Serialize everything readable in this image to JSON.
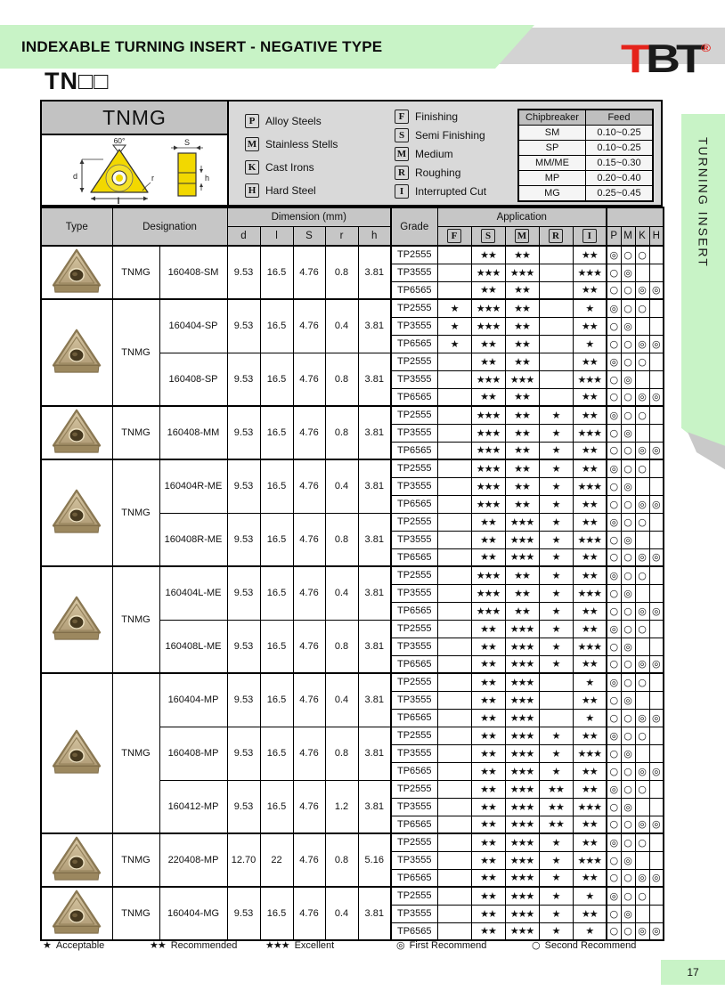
{
  "page": {
    "banner_title": "INDEXABLE TURNING INSERT - NEGATIVE TYPE",
    "logo": {
      "t1": "T",
      "b": "B",
      "t2": "T",
      "registered": "®"
    },
    "model_code": "TN□□",
    "side_tab": "TURNING INSERT",
    "page_number": "17"
  },
  "product": {
    "name": "TNMG",
    "diagram_labels": {
      "angle": "60°",
      "d": "d",
      "l": "l",
      "s": "S",
      "r": "r",
      "h": "h"
    }
  },
  "material_legend": [
    {
      "code": "P",
      "label": "Alloy Steels"
    },
    {
      "code": "M",
      "label": "Stainless Stells"
    },
    {
      "code": "K",
      "label": "Cast Irons"
    },
    {
      "code": "H",
      "label": "Hard Steel"
    }
  ],
  "application_legend": [
    {
      "code": "F",
      "label": "Finishing"
    },
    {
      "code": "S",
      "label": "Semi Finishing"
    },
    {
      "code": "M",
      "label": "Medium"
    },
    {
      "code": "R",
      "label": "Roughing"
    },
    {
      "code": "I",
      "label": "Interrupted Cut"
    }
  ],
  "chipbreaker_table": {
    "headers": [
      "Chipbreaker",
      "Feed"
    ],
    "rows": [
      [
        "SM",
        "0.10~0.25"
      ],
      [
        "SP",
        "0.10~0.25"
      ],
      [
        "MM/ME",
        "0.15~0.30"
      ],
      [
        "MP",
        "0.20~0.40"
      ],
      [
        "MG",
        "0.25~0.45"
      ]
    ]
  },
  "table": {
    "headers": {
      "type": "Type",
      "designation": "Designation",
      "dimension": "Dimension (mm)",
      "dim_cols": [
        "d",
        "l",
        "S",
        "r",
        "h"
      ],
      "grade": "Grade",
      "application": "Application",
      "app_cols": [
        "F",
        "S",
        "M",
        "R",
        "I"
      ],
      "material_cols": [
        "P",
        "M",
        "K",
        "H"
      ]
    },
    "groups": [
      {
        "type_label": "TNMG",
        "items": [
          {
            "designation": "160408-SM",
            "d": "9.53",
            "l": "16.5",
            "s": "4.76",
            "r": "0.8",
            "h": "3.81",
            "grades": [
              {
                "grade": "TP2555",
                "apps": [
                  "",
                  "★★",
                  "★★",
                  "",
                  "★★"
                ],
                "mats": [
                  "◎",
                  "○",
                  "○",
                  ""
                ]
              },
              {
                "grade": "TP3555",
                "apps": [
                  "",
                  "★★★",
                  "★★★",
                  "",
                  "★★★"
                ],
                "mats": [
                  "○",
                  "◎",
                  "",
                  ""
                ]
              },
              {
                "grade": "TP6565",
                "apps": [
                  "",
                  "★★",
                  "★★",
                  "",
                  "★★"
                ],
                "mats": [
                  "○",
                  "○",
                  "◎",
                  "◎"
                ]
              }
            ]
          }
        ]
      },
      {
        "type_label": "TNMG",
        "items": [
          {
            "designation": "160404-SP",
            "d": "9.53",
            "l": "16.5",
            "s": "4.76",
            "r": "0.4",
            "h": "3.81",
            "grades": [
              {
                "grade": "TP2555",
                "apps": [
                  "★",
                  "★★★",
                  "★★",
                  "",
                  "★"
                ],
                "mats": [
                  "◎",
                  "○",
                  "○",
                  ""
                ]
              },
              {
                "grade": "TP3555",
                "apps": [
                  "★",
                  "★★★",
                  "★★",
                  "",
                  "★★"
                ],
                "mats": [
                  "○",
                  "◎",
                  "",
                  ""
                ]
              },
              {
                "grade": "TP6565",
                "apps": [
                  "★",
                  "★★",
                  "★★",
                  "",
                  "★"
                ],
                "mats": [
                  "○",
                  "○",
                  "◎",
                  "◎"
                ]
              }
            ]
          },
          {
            "designation": "160408-SP",
            "d": "9.53",
            "l": "16.5",
            "s": "4.76",
            "r": "0.8",
            "h": "3.81",
            "grades": [
              {
                "grade": "TP2555",
                "apps": [
                  "",
                  "★★",
                  "★★",
                  "",
                  "★★"
                ],
                "mats": [
                  "◎",
                  "○",
                  "○",
                  ""
                ]
              },
              {
                "grade": "TP3555",
                "apps": [
                  "",
                  "★★★",
                  "★★★",
                  "",
                  "★★★"
                ],
                "mats": [
                  "○",
                  "◎",
                  "",
                  ""
                ]
              },
              {
                "grade": "TP6565",
                "apps": [
                  "",
                  "★★",
                  "★★",
                  "",
                  "★★"
                ],
                "mats": [
                  "○",
                  "○",
                  "◎",
                  "◎"
                ]
              }
            ]
          }
        ]
      },
      {
        "type_label": "TNMG",
        "items": [
          {
            "designation": "160408-MM",
            "d": "9.53",
            "l": "16.5",
            "s": "4.76",
            "r": "0.8",
            "h": "3.81",
            "grades": [
              {
                "grade": "TP2555",
                "apps": [
                  "",
                  "★★★",
                  "★★",
                  "★",
                  "★★"
                ],
                "mats": [
                  "◎",
                  "○",
                  "○",
                  ""
                ]
              },
              {
                "grade": "TP3555",
                "apps": [
                  "",
                  "★★★",
                  "★★",
                  "★",
                  "★★★"
                ],
                "mats": [
                  "○",
                  "◎",
                  "",
                  ""
                ]
              },
              {
                "grade": "TP6565",
                "apps": [
                  "",
                  "★★★",
                  "★★",
                  "★",
                  "★★"
                ],
                "mats": [
                  "○",
                  "○",
                  "◎",
                  "◎"
                ]
              }
            ]
          }
        ]
      },
      {
        "type_label": "TNMG",
        "items": [
          {
            "designation": "160404R-ME",
            "d": "9.53",
            "l": "16.5",
            "s": "4.76",
            "r": "0.4",
            "h": "3.81",
            "grades": [
              {
                "grade": "TP2555",
                "apps": [
                  "",
                  "★★★",
                  "★★",
                  "★",
                  "★★"
                ],
                "mats": [
                  "◎",
                  "○",
                  "○",
                  ""
                ]
              },
              {
                "grade": "TP3555",
                "apps": [
                  "",
                  "★★★",
                  "★★",
                  "★",
                  "★★★"
                ],
                "mats": [
                  "○",
                  "◎",
                  "",
                  ""
                ]
              },
              {
                "grade": "TP6565",
                "apps": [
                  "",
                  "★★★",
                  "★★",
                  "★",
                  "★★"
                ],
                "mats": [
                  "○",
                  "○",
                  "◎",
                  "◎"
                ]
              }
            ]
          },
          {
            "designation": "160408R-ME",
            "d": "9.53",
            "l": "16.5",
            "s": "4.76",
            "r": "0.8",
            "h": "3.81",
            "grades": [
              {
                "grade": "TP2555",
                "apps": [
                  "",
                  "★★",
                  "★★★",
                  "★",
                  "★★"
                ],
                "mats": [
                  "◎",
                  "○",
                  "○",
                  ""
                ]
              },
              {
                "grade": "TP3555",
                "apps": [
                  "",
                  "★★",
                  "★★★",
                  "★",
                  "★★★"
                ],
                "mats": [
                  "○",
                  "◎",
                  "",
                  ""
                ]
              },
              {
                "grade": "TP6565",
                "apps": [
                  "",
                  "★★",
                  "★★★",
                  "★",
                  "★★"
                ],
                "mats": [
                  "○",
                  "○",
                  "◎",
                  "◎"
                ]
              }
            ]
          }
        ]
      },
      {
        "type_label": "TNMG",
        "items": [
          {
            "designation": "160404L-ME",
            "d": "9.53",
            "l": "16.5",
            "s": "4.76",
            "r": "0.4",
            "h": "3.81",
            "grades": [
              {
                "grade": "TP2555",
                "apps": [
                  "",
                  "★★★",
                  "★★",
                  "★",
                  "★★"
                ],
                "mats": [
                  "◎",
                  "○",
                  "○",
                  ""
                ]
              },
              {
                "grade": "TP3555",
                "apps": [
                  "",
                  "★★★",
                  "★★",
                  "★",
                  "★★★"
                ],
                "mats": [
                  "○",
                  "◎",
                  "",
                  ""
                ]
              },
              {
                "grade": "TP6565",
                "apps": [
                  "",
                  "★★★",
                  "★★",
                  "★",
                  "★★"
                ],
                "mats": [
                  "○",
                  "○",
                  "◎",
                  "◎"
                ]
              }
            ]
          },
          {
            "designation": "160408L-ME",
            "d": "9.53",
            "l": "16.5",
            "s": "4.76",
            "r": "0.8",
            "h": "3.81",
            "grades": [
              {
                "grade": "TP2555",
                "apps": [
                  "",
                  "★★",
                  "★★★",
                  "★",
                  "★★"
                ],
                "mats": [
                  "◎",
                  "○",
                  "○",
                  ""
                ]
              },
              {
                "grade": "TP3555",
                "apps": [
                  "",
                  "★★",
                  "★★★",
                  "★",
                  "★★★"
                ],
                "mats": [
                  "○",
                  "◎",
                  "",
                  ""
                ]
              },
              {
                "grade": "TP6565",
                "apps": [
                  "",
                  "★★",
                  "★★★",
                  "★",
                  "★★"
                ],
                "mats": [
                  "○",
                  "○",
                  "◎",
                  "◎"
                ]
              }
            ]
          }
        ]
      },
      {
        "type_label": "TNMG",
        "items": [
          {
            "designation": "160404-MP",
            "d": "9.53",
            "l": "16.5",
            "s": "4.76",
            "r": "0.4",
            "h": "3.81",
            "grades": [
              {
                "grade": "TP2555",
                "apps": [
                  "",
                  "★★",
                  "★★★",
                  "",
                  "★"
                ],
                "mats": [
                  "◎",
                  "○",
                  "○",
                  ""
                ]
              },
              {
                "grade": "TP3555",
                "apps": [
                  "",
                  "★★",
                  "★★★",
                  "",
                  "★★"
                ],
                "mats": [
                  "○",
                  "◎",
                  "",
                  ""
                ]
              },
              {
                "grade": "TP6565",
                "apps": [
                  "",
                  "★★",
                  "★★★",
                  "",
                  "★"
                ],
                "mats": [
                  "○",
                  "○",
                  "◎",
                  "◎"
                ]
              }
            ]
          },
          {
            "designation": "160408-MP",
            "d": "9.53",
            "l": "16.5",
            "s": "4.76",
            "r": "0.8",
            "h": "3.81",
            "grades": [
              {
                "grade": "TP2555",
                "apps": [
                  "",
                  "★★",
                  "★★★",
                  "★",
                  "★★"
                ],
                "mats": [
                  "◎",
                  "○",
                  "○",
                  ""
                ]
              },
              {
                "grade": "TP3555",
                "apps": [
                  "",
                  "★★",
                  "★★★",
                  "★",
                  "★★★"
                ],
                "mats": [
                  "○",
                  "◎",
                  "",
                  ""
                ]
              },
              {
                "grade": "TP6565",
                "apps": [
                  "",
                  "★★",
                  "★★★",
                  "★",
                  "★★"
                ],
                "mats": [
                  "○",
                  "○",
                  "◎",
                  "◎"
                ]
              }
            ]
          },
          {
            "designation": "160412-MP",
            "d": "9.53",
            "l": "16.5",
            "s": "4.76",
            "r": "1.2",
            "h": "3.81",
            "grades": [
              {
                "grade": "TP2555",
                "apps": [
                  "",
                  "★★",
                  "★★★",
                  "★★",
                  "★★"
                ],
                "mats": [
                  "◎",
                  "○",
                  "○",
                  ""
                ]
              },
              {
                "grade": "TP3555",
                "apps": [
                  "",
                  "★★",
                  "★★★",
                  "★★",
                  "★★★"
                ],
                "mats": [
                  "○",
                  "◎",
                  "",
                  ""
                ]
              },
              {
                "grade": "TP6565",
                "apps": [
                  "",
                  "★★",
                  "★★★",
                  "★★",
                  "★★"
                ],
                "mats": [
                  "○",
                  "○",
                  "◎",
                  "◎"
                ]
              }
            ]
          }
        ]
      },
      {
        "type_label": "TNMG",
        "items": [
          {
            "designation": "220408-MP",
            "d": "12.70",
            "l": "22",
            "s": "4.76",
            "r": "0.8",
            "h": "5.16",
            "grades": [
              {
                "grade": "TP2555",
                "apps": [
                  "",
                  "★★",
                  "★★★",
                  "★",
                  "★★"
                ],
                "mats": [
                  "◎",
                  "○",
                  "○",
                  ""
                ]
              },
              {
                "grade": "TP3555",
                "apps": [
                  "",
                  "★★",
                  "★★★",
                  "★",
                  "★★★"
                ],
                "mats": [
                  "○",
                  "◎",
                  "",
                  ""
                ]
              },
              {
                "grade": "TP6565",
                "apps": [
                  "",
                  "★★",
                  "★★★",
                  "★",
                  "★★"
                ],
                "mats": [
                  "○",
                  "○",
                  "◎",
                  "◎"
                ]
              }
            ]
          }
        ]
      },
      {
        "type_label": "TNMG",
        "items": [
          {
            "designation": "160404-MG",
            "d": "9.53",
            "l": "16.5",
            "s": "4.76",
            "r": "0.4",
            "h": "3.81",
            "grades": [
              {
                "grade": "TP2555",
                "apps": [
                  "",
                  "★★",
                  "★★★",
                  "★",
                  "★"
                ],
                "mats": [
                  "◎",
                  "○",
                  "○",
                  ""
                ]
              },
              {
                "grade": "TP3555",
                "apps": [
                  "",
                  "★★",
                  "★★★",
                  "★",
                  "★★"
                ],
                "mats": [
                  "○",
                  "◎",
                  "",
                  ""
                ]
              },
              {
                "grade": "TP6565",
                "apps": [
                  "",
                  "★★",
                  "★★★",
                  "★",
                  "★"
                ],
                "mats": [
                  "○",
                  "○",
                  "◎",
                  "◎"
                ]
              }
            ]
          }
        ]
      }
    ]
  },
  "footer_legend": [
    {
      "symbol": "★",
      "label": "Acceptable"
    },
    {
      "symbol": "★★",
      "label": "Recommended"
    },
    {
      "symbol": "★★★",
      "label": "Excellent"
    },
    {
      "symbol": "◎",
      "label": "First Recommend"
    },
    {
      "symbol": "○",
      "label": "Second Recommend"
    }
  ]
}
